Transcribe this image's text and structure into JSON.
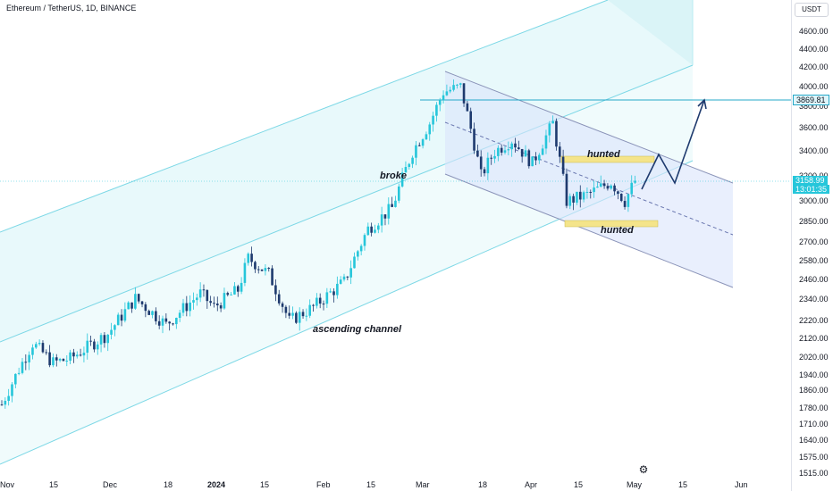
{
  "header": {
    "title": "Ethereum / TetherUS, 1D, BINANCE"
  },
  "price_axis": {
    "currency": "USDT",
    "ticks": [
      "4600.00",
      "4400.00",
      "4200.00",
      "4000.00",
      "3800.00",
      "3600.00",
      "3400.00",
      "3200.00",
      "3000.00",
      "2850.00",
      "2700.00",
      "2580.00",
      "2460.00",
      "2340.00",
      "2220.00",
      "2120.00",
      "2020.00",
      "1940.00",
      "1860.00",
      "1780.00",
      "1710.00",
      "1640.00",
      "1575.00",
      "1515.00"
    ],
    "level_tag": "3869.81",
    "last_price": "3158.99",
    "countdown": "13:01:35"
  },
  "time_axis": {
    "ticks": [
      "Nov",
      "15",
      "Dec",
      "18",
      "2024",
      "15",
      "Feb",
      "15",
      "Mar",
      "18",
      "Apr",
      "15",
      "May",
      "15",
      "Jun"
    ],
    "bold_tick": "2024"
  },
  "annotations": {
    "broke": "broke",
    "hunted_top": "hunted",
    "hunted_bottom": "hunted",
    "ascending_channel": "ascending channel"
  },
  "colors": {
    "up": "#26c6da",
    "down": "#1e3a6e",
    "ascending_fill": "#e0f7fa",
    "ascending_line": "#7dd8e6",
    "descending_fill": "#dbe4fb",
    "descending_line": "#8a93b8",
    "hunted_box": "#f4e48a",
    "level_line": "#26a8c8"
  },
  "icons": {
    "settings": "settings-icon"
  },
  "chart_data": {
    "type": "candlestick",
    "symbol": "ETH/USDT",
    "interval": "1D",
    "exchange": "BINANCE",
    "levels": [
      3869.81
    ],
    "last_price": 3158.99,
    "x_range": [
      "2023-10-31",
      "2024-06-01"
    ],
    "y_range": [
      1515,
      4600
    ],
    "close_path": [
      [
        "2023-10-31",
        1800
      ],
      [
        "2023-11-09",
        2100
      ],
      [
        "2023-11-15",
        2000
      ],
      [
        "2023-11-20",
        2020
      ],
      [
        "2023-12-01",
        2150
      ],
      [
        "2023-12-09",
        2350
      ],
      [
        "2023-12-18",
        2200
      ],
      [
        "2023-12-28",
        2380
      ],
      [
        "2024-01-01",
        2300
      ],
      [
        "2024-01-08",
        2400
      ],
      [
        "2024-01-11",
        2600
      ],
      [
        "2024-01-17",
        2500
      ],
      [
        "2024-01-23",
        2220
      ],
      [
        "2024-01-30",
        2300
      ],
      [
        "2024-02-08",
        2450
      ],
      [
        "2024-02-15",
        2800
      ],
      [
        "2024-02-22",
        2950
      ],
      [
        "2024-02-28",
        3400
      ],
      [
        "2024-03-04",
        3650
      ],
      [
        "2024-03-08",
        3950
      ],
      [
        "2024-03-13",
        4000
      ],
      [
        "2024-03-19",
        3200
      ],
      [
        "2024-03-23",
        3400
      ],
      [
        "2024-03-28",
        3500
      ],
      [
        "2024-04-03",
        3300
      ],
      [
        "2024-04-09",
        3650
      ],
      [
        "2024-04-13",
        3000
      ],
      [
        "2024-04-19",
        3050
      ],
      [
        "2024-04-26",
        3150
      ],
      [
        "2024-04-30",
        3000
      ],
      [
        "2024-05-03",
        3158.99
      ]
    ]
  }
}
